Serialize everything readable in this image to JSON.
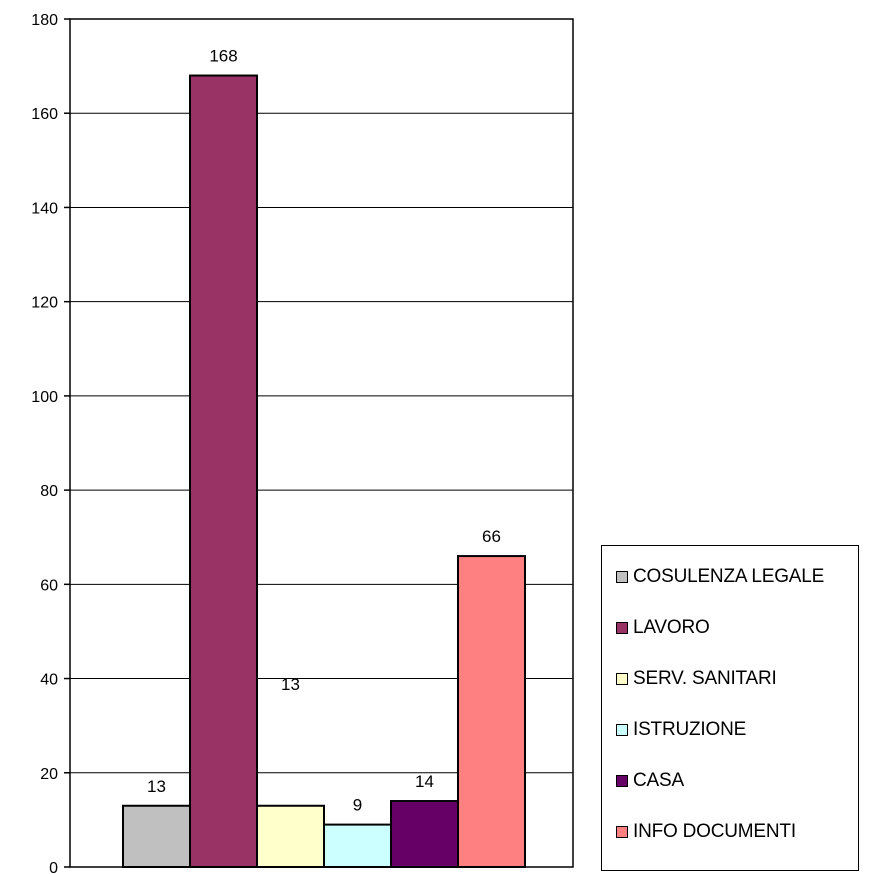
{
  "chart_data": {
    "type": "bar",
    "title": "",
    "xlabel": "",
    "ylabel": "",
    "ylim": [
      0,
      180
    ],
    "yticks": [
      0,
      20,
      40,
      60,
      80,
      100,
      120,
      140,
      160,
      180
    ],
    "grid": true,
    "legend_position": "bottom-right",
    "series": [
      {
        "name": "COSULENZA LEGALE",
        "value": 13,
        "color": "#C0C0C0"
      },
      {
        "name": "LAVORO",
        "value": 168,
        "color": "#993366"
      },
      {
        "name": "SERV. SANITARI",
        "value": 13,
        "color": "#FFFFCC"
      },
      {
        "name": "ISTRUZIONE",
        "value": 9,
        "color": "#CCFFFF"
      },
      {
        "name": "CASA",
        "value": 14,
        "color": "#660066"
      },
      {
        "name": "INFO DOCUMENTI",
        "value": 66,
        "color": "#FF8080"
      }
    ],
    "data_labels": [
      "13",
      "168",
      "13",
      "9",
      "14",
      "66"
    ]
  }
}
